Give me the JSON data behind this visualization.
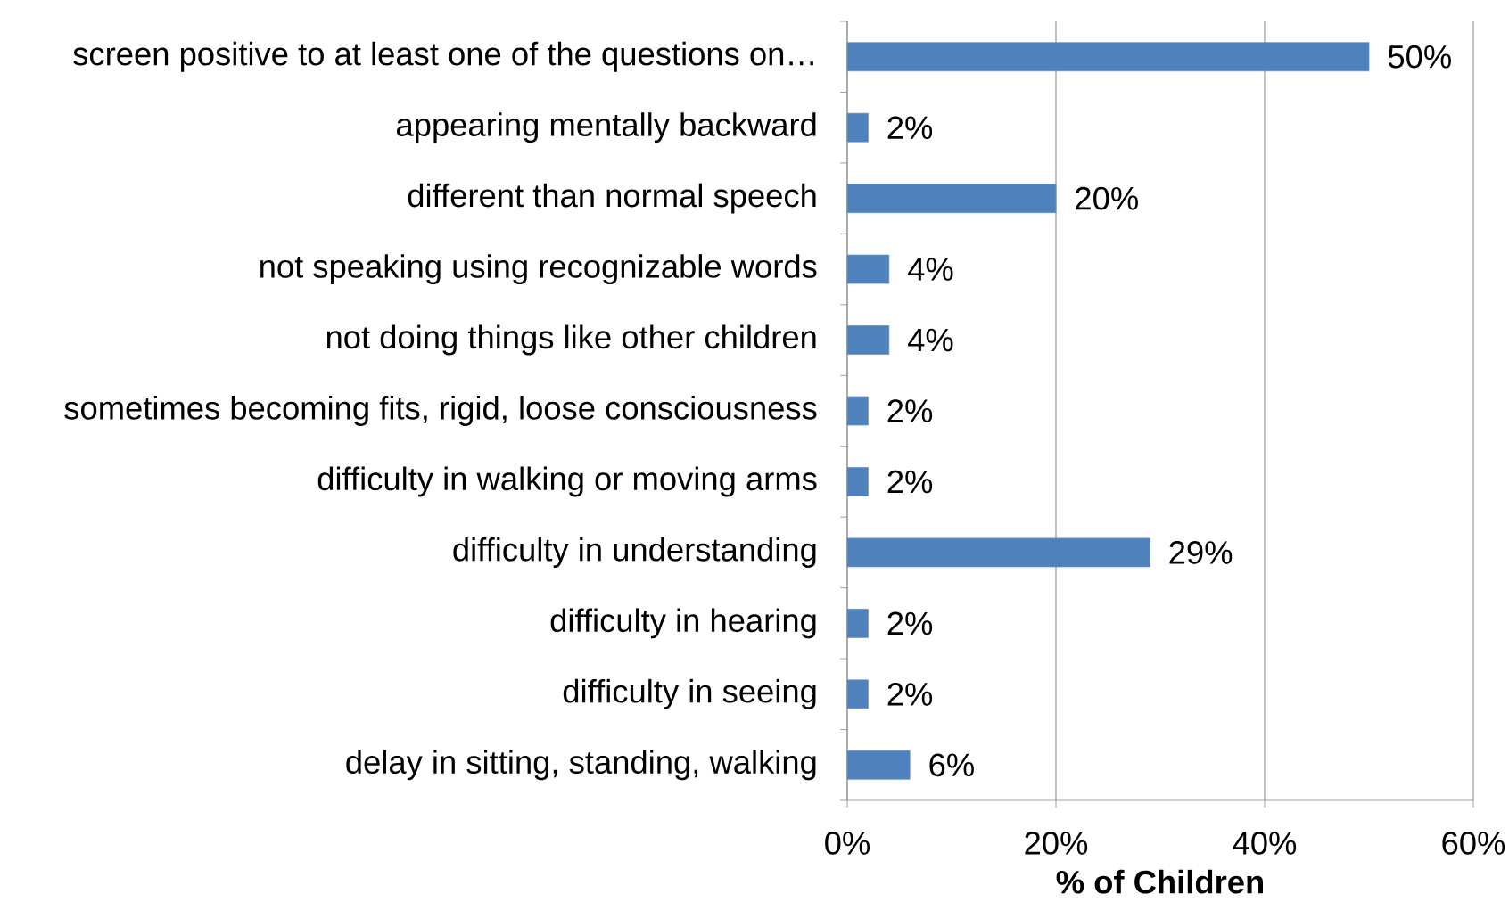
{
  "chart_data": {
    "type": "bar",
    "orientation": "horizontal",
    "categories": [
      "screen positive to at least one of the questions on…",
      "appearing mentally backward",
      "different than normal speech",
      "not speaking using recognizable words",
      "not doing things like other children",
      "sometimes becoming fits, rigid, loose consciousness",
      "difficulty in walking or moving arms",
      "difficulty in understanding",
      "difficulty in hearing",
      "difficulty in seeing",
      "delay in sitting, standing, walking"
    ],
    "values": [
      50,
      2,
      20,
      4,
      4,
      2,
      2,
      29,
      2,
      2,
      6
    ],
    "value_labels": [
      "50%",
      "2%",
      "20%",
      "4%",
      "4%",
      "2%",
      "2%",
      "29%",
      "2%",
      "2%",
      "6%"
    ],
    "color": "#4f81bd",
    "xlabel": "% of Children",
    "xlim": [
      0,
      60
    ],
    "xticks": [
      {
        "value": 0,
        "label": "0%"
      },
      {
        "value": 20,
        "label": "20%"
      },
      {
        "value": 40,
        "label": "40%"
      },
      {
        "value": 60,
        "label": "60%"
      }
    ],
    "grid": "x"
  }
}
